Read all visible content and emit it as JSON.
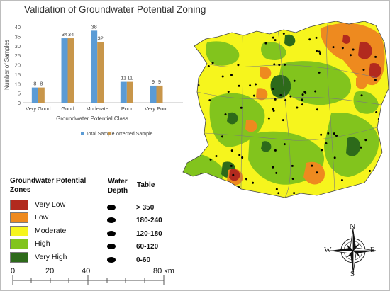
{
  "chart_data": {
    "type": "bar",
    "title": "Validation of Groundwater Potential Zoning",
    "xlabel": "Groundwater Potential Class",
    "ylabel": "Number of Samples",
    "categories": [
      "Very Good",
      "Good",
      "Moderate",
      "Poor",
      "Very Poor"
    ],
    "series": [
      {
        "name": "Total Sample",
        "values": [
          8,
          34,
          38,
          11,
          9
        ],
        "color": "#5b9bd5"
      },
      {
        "name": "Corrected Sample",
        "values": [
          8,
          34,
          32,
          11,
          9
        ],
        "color": "#c8964a"
      }
    ],
    "ylim": [
      0,
      40
    ],
    "yticks": [
      0,
      5,
      10,
      15,
      20,
      25,
      30,
      35,
      40
    ],
    "grid": false,
    "legend_position": "bottom"
  },
  "legend": {
    "title": "Groundwater Potential Zones",
    "items": [
      {
        "label": "Very Low",
        "color": "#b22a1e"
      },
      {
        "label": "Low",
        "color": "#ee8a1f"
      },
      {
        "label": "Moderate",
        "color": "#f6f51d"
      },
      {
        "label": "High",
        "color": "#82c41d"
      },
      {
        "label": "Very High",
        "color": "#2d6a1a"
      }
    ]
  },
  "water_depth": {
    "title": "Water Depth",
    "table_title": "Table",
    "classes": [
      "> 350",
      "180-240",
      "120-180",
      "60-120",
      "0-60"
    ]
  },
  "scale": {
    "ticks": [
      "0",
      "20",
      "40",
      "80 km"
    ]
  },
  "compass": {
    "n": "N",
    "s": "S",
    "e": "E",
    "w": "W"
  },
  "map": {
    "colors": {
      "very_low": "#b22a1e",
      "low": "#ee8a1f",
      "moderate": "#f6f51d",
      "high": "#82c41d",
      "very_high": "#2d6a1a"
    }
  }
}
